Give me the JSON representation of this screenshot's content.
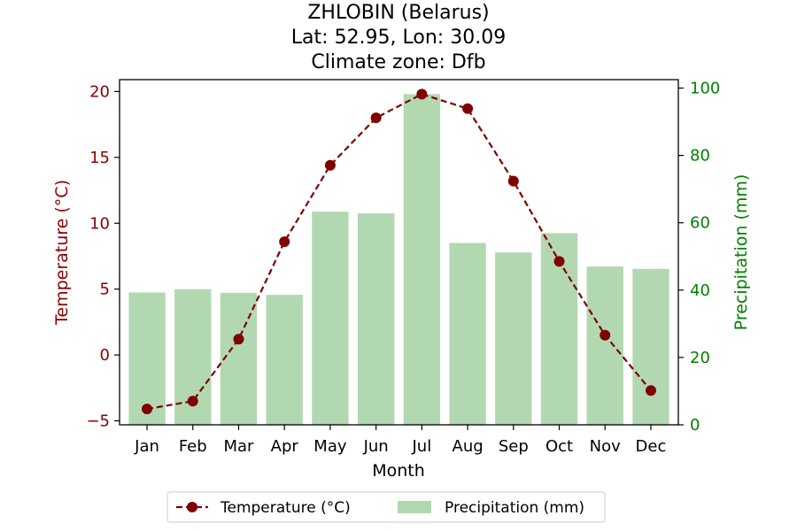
{
  "chart_data": {
    "type": "bar+line",
    "title_lines": [
      "ZHLOBIN (Belarus)",
      "Lat: 52.95, Lon: 30.09",
      "Climate zone: Dfb"
    ],
    "xlabel": "Month",
    "categories": [
      "Jan",
      "Feb",
      "Mar",
      "Apr",
      "May",
      "Jun",
      "Jul",
      "Aug",
      "Sep",
      "Oct",
      "Nov",
      "Dec"
    ],
    "left_axis": {
      "label": "Temperature (°C)",
      "ylim": [
        -5.3,
        20.9
      ],
      "ticks": [
        -5,
        0,
        5,
        10,
        15,
        20
      ],
      "tick_labels": [
        "−5",
        "0",
        "5",
        "10",
        "15",
        "20"
      ],
      "color": "#8b0000"
    },
    "right_axis": {
      "label": "Precipitation (mm)",
      "ylim": [
        0,
        102.5
      ],
      "ticks": [
        0,
        20,
        40,
        60,
        80,
        100
      ],
      "tick_labels": [
        "0",
        "20",
        "40",
        "60",
        "80",
        "100"
      ],
      "color": "#008000"
    },
    "series": [
      {
        "name": "Temperature (°C)",
        "kind": "line",
        "axis": "left",
        "color": "#800000",
        "style": "dashed-with-markers",
        "values": [
          -4.1,
          -3.5,
          1.2,
          8.6,
          14.4,
          18.0,
          19.8,
          18.7,
          13.2,
          7.1,
          1.5,
          -2.7
        ]
      },
      {
        "name": "Precipitation (mm)",
        "kind": "bar",
        "axis": "right",
        "color": "#b2d8b2",
        "values": [
          39.3,
          40.3,
          39.2,
          38.6,
          63.3,
          62.8,
          98.2,
          54.0,
          51.2,
          56.9,
          47.0,
          46.3
        ]
      }
    ],
    "legend_position": "bottom-center"
  }
}
